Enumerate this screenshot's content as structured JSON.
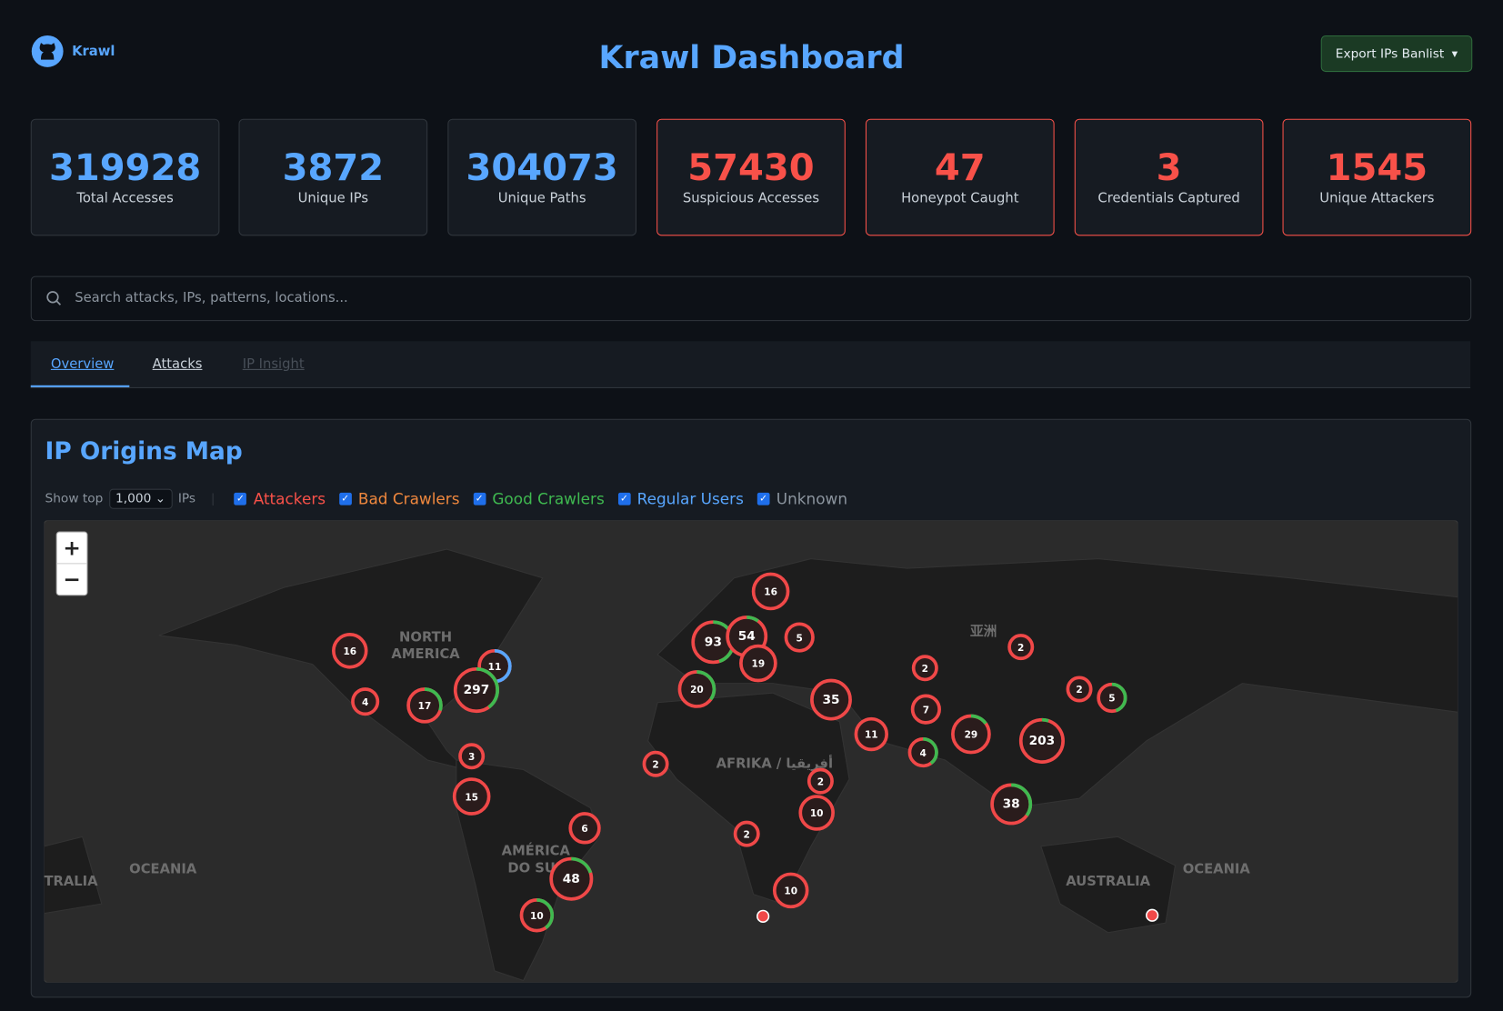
{
  "header": {
    "brand": "Krawl",
    "title": "Krawl Dashboard",
    "export_button": "Export IPs Banlist"
  },
  "stats": [
    {
      "value": "319928",
      "label": "Total Accesses"
    },
    {
      "value": "3872",
      "label": "Unique IPs"
    },
    {
      "value": "304073",
      "label": "Unique Paths"
    },
    {
      "value": "57430",
      "label": "Suspicious Accesses"
    },
    {
      "value": "47",
      "label": "Honeypot Caught"
    },
    {
      "value": "3",
      "label": "Credentials Captured"
    },
    {
      "value": "1545",
      "label": "Unique Attackers"
    }
  ],
  "search": {
    "placeholder": "Search attacks, IPs, patterns, locations..."
  },
  "tabs": [
    "Overview",
    "Attacks",
    "IP Insight"
  ],
  "map": {
    "title": "IP Origins Map",
    "show_top": "Show top",
    "top_value": "1,000",
    "ips": "IPs",
    "filters": [
      "Attackers",
      "Bad Crawlers",
      "Good Crawlers",
      "Regular Users",
      "Unknown"
    ],
    "zoom_in": "+",
    "zoom_out": "−",
    "labels": [
      "NORTH",
      "AMERICA",
      "AMÉRICA",
      "DO SUL",
      "AFRIKA / أفريقيا",
      "亚洲",
      "AUSTRALIA",
      "OCEANIA",
      "OCEANIA",
      "TRALIA"
    ],
    "clusters": [
      "16",
      "16",
      "93",
      "54",
      "5",
      "19",
      "11",
      "297",
      "4",
      "17",
      "20",
      "35",
      "2",
      "2",
      "7",
      "2",
      "5",
      "11",
      "29",
      "203",
      "4",
      "3",
      "2",
      "15",
      "2",
      "10",
      "38",
      "6",
      "2",
      "48",
      "10",
      "10"
    ]
  }
}
